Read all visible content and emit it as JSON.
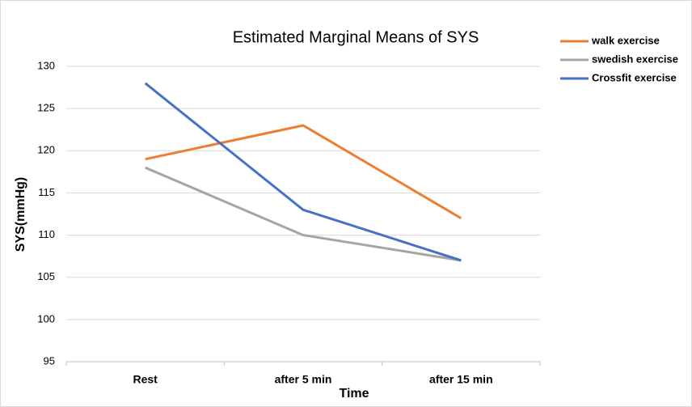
{
  "chart_data": {
    "type": "line",
    "title": "Estimated Marginal Means of SYS",
    "x_label": "Time",
    "y_label": "SYS(mmHg)",
    "categories": [
      "Rest",
      "after  5 min",
      "after 15 min"
    ],
    "series": [
      {
        "name": "walk exercise",
        "color": "#ed7d31",
        "values": [
          119,
          123,
          112
        ]
      },
      {
        "name": "swedish exercise",
        "color": "#a5a5a5",
        "values": [
          118,
          110,
          107
        ]
      },
      {
        "name": "Crossfit exercise",
        "color": "#4472c4",
        "values": [
          128,
          113,
          107
        ]
      }
    ],
    "ylim": [
      95,
      130
    ],
    "yticks": [
      95,
      100,
      105,
      110,
      115,
      120,
      125,
      130
    ],
    "grid": true,
    "legend": "top-right"
  }
}
